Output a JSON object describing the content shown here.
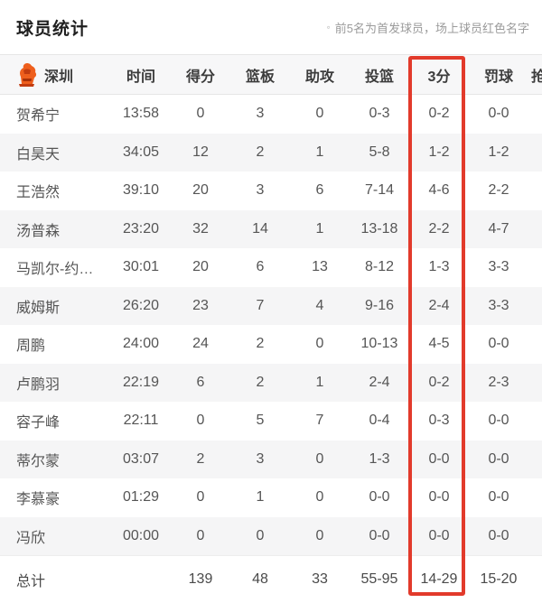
{
  "page": {
    "title": "球员统计",
    "note_bullet": "◦",
    "note": "前5名为首发球员，场上球员红色名字"
  },
  "table": {
    "team": "深圳",
    "columns": {
      "time": "时间",
      "points": "得分",
      "rebounds": "篮板",
      "assists": "助攻",
      "field_goals": "投篮",
      "three_pointers": "3分",
      "free_throws": "罚球",
      "partial_clipped": "抢"
    },
    "highlighted_column": "3分",
    "rows": [
      {
        "name": "贺希宁",
        "time": "13:58",
        "pts": "0",
        "reb": "3",
        "ast": "0",
        "fg": "0-3",
        "tp": "0-2",
        "ft": "0-0"
      },
      {
        "name": "白昊天",
        "time": "34:05",
        "pts": "12",
        "reb": "2",
        "ast": "1",
        "fg": "5-8",
        "tp": "1-2",
        "ft": "1-2"
      },
      {
        "name": "王浩然",
        "time": "39:10",
        "pts": "20",
        "reb": "3",
        "ast": "6",
        "fg": "7-14",
        "tp": "4-6",
        "ft": "2-2"
      },
      {
        "name": "汤普森",
        "time": "23:20",
        "pts": "32",
        "reb": "14",
        "ast": "1",
        "fg": "13-18",
        "tp": "2-2",
        "ft": "4-7"
      },
      {
        "name": "马凯尔-约…",
        "time": "30:01",
        "pts": "20",
        "reb": "6",
        "ast": "13",
        "fg": "8-12",
        "tp": "1-3",
        "ft": "3-3"
      },
      {
        "name": "威姆斯",
        "time": "26:20",
        "pts": "23",
        "reb": "7",
        "ast": "4",
        "fg": "9-16",
        "tp": "2-4",
        "ft": "3-3"
      },
      {
        "name": "周鹏",
        "time": "24:00",
        "pts": "24",
        "reb": "2",
        "ast": "0",
        "fg": "10-13",
        "tp": "4-5",
        "ft": "0-0"
      },
      {
        "name": "卢鹏羽",
        "time": "22:19",
        "pts": "6",
        "reb": "2",
        "ast": "1",
        "fg": "2-4",
        "tp": "0-2",
        "ft": "2-3"
      },
      {
        "name": "容子峰",
        "time": "22:11",
        "pts": "0",
        "reb": "5",
        "ast": "7",
        "fg": "0-4",
        "tp": "0-3",
        "ft": "0-0"
      },
      {
        "name": "蒂尔蒙",
        "time": "03:07",
        "pts": "2",
        "reb": "3",
        "ast": "0",
        "fg": "1-3",
        "tp": "0-0",
        "ft": "0-0"
      },
      {
        "name": "李慕豪",
        "time": "01:29",
        "pts": "0",
        "reb": "1",
        "ast": "0",
        "fg": "0-0",
        "tp": "0-0",
        "ft": "0-0"
      },
      {
        "name": "冯欣",
        "time": "00:00",
        "pts": "0",
        "reb": "0",
        "ast": "0",
        "fg": "0-0",
        "tp": "0-0",
        "ft": "0-0"
      }
    ],
    "totals": {
      "name": "总计",
      "time": "",
      "pts": "139",
      "reb": "48",
      "ast": "33",
      "fg": "55-95",
      "tp": "14-29",
      "ft": "15-20"
    }
  },
  "colors": {
    "highlight_box": "#e23a2b",
    "logo_primary": "#ee5f1d",
    "logo_dark": "#c23c10",
    "stripe": "#f5f5f6",
    "header_bg": "#f7f7f8"
  }
}
